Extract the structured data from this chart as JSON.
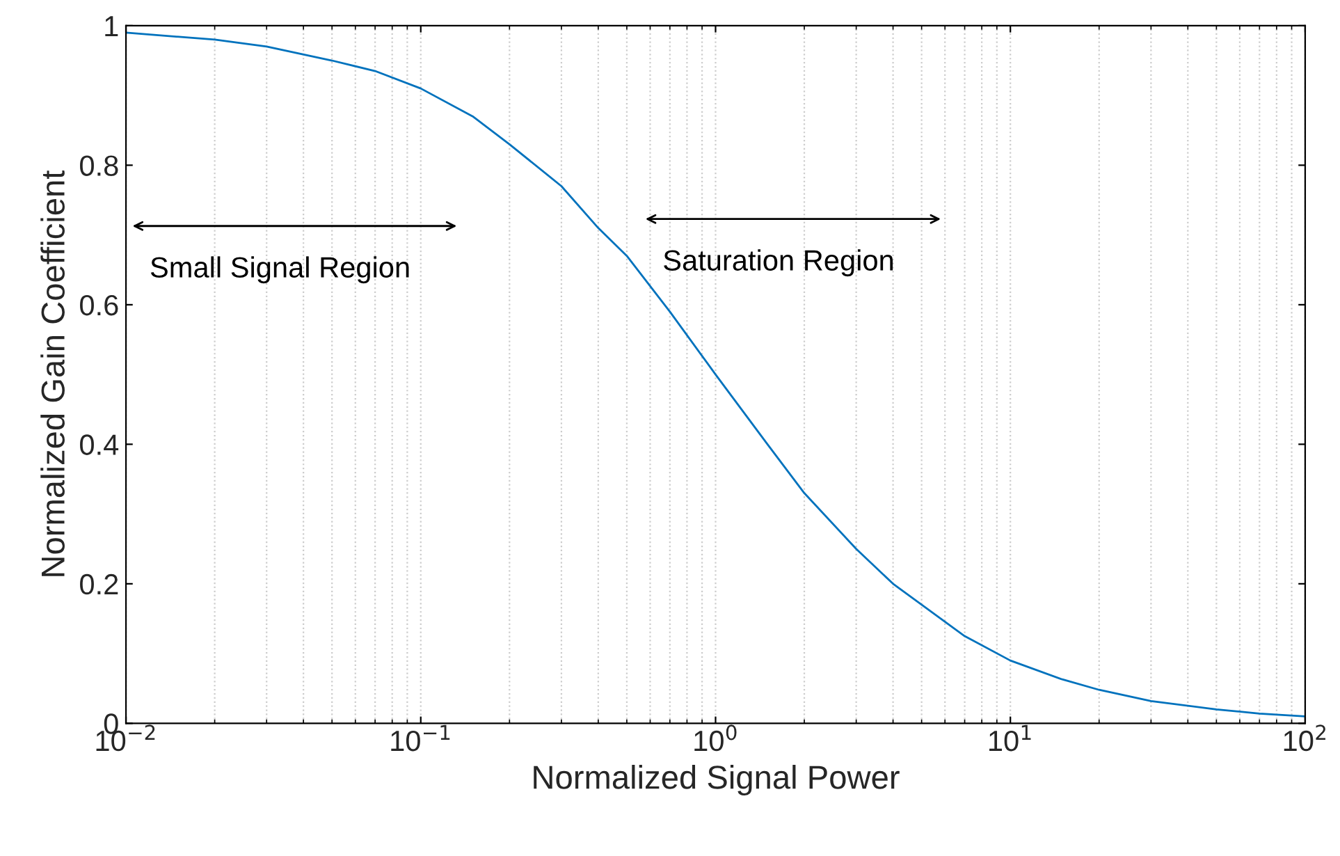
{
  "chart_data": {
    "type": "line",
    "xlabel": "Normalized Signal Power",
    "ylabel": "Normalized Gain Coefficient",
    "x": [
      0.01,
      0.02,
      0.03,
      0.05,
      0.07,
      0.1,
      0.15,
      0.2,
      0.3,
      0.4,
      0.5,
      0.7,
      1,
      1.5,
      2,
      3,
      4,
      5,
      7,
      10,
      15,
      20,
      30,
      50,
      70,
      100
    ],
    "series": [
      {
        "color": "#0072bd",
        "values": [
          0.99,
          0.98,
          0.97,
          0.95,
          0.935,
          0.91,
          0.87,
          0.83,
          0.77,
          0.71,
          0.67,
          0.59,
          0.5,
          0.4,
          0.33,
          0.25,
          0.2,
          0.17,
          0.125,
          0.09,
          0.063,
          0.048,
          0.032,
          0.02,
          0.014,
          0.01
        ]
      }
    ],
    "log": "x",
    "xlim": [
      0.01,
      100
    ],
    "ylim": [
      0,
      1
    ],
    "xticks": [
      {
        "value": 0.01,
        "label": "10$^{−2}$"
      },
      {
        "value": 0.1,
        "label": "10$^{−1}$"
      },
      {
        "value": 1,
        "label": "10$^{0}$"
      },
      {
        "value": 10,
        "label": "10$^{1}$"
      },
      {
        "value": 100,
        "label": "10$^{2}$"
      }
    ],
    "yticks": [
      0,
      0.2,
      0.4,
      0.6,
      0.8,
      1
    ],
    "grid": "x",
    "marker": "none",
    "line_style": "solid",
    "legend": false,
    "annotations": [
      "Small Signal Region",
      "Saturation Region"
    ]
  }
}
